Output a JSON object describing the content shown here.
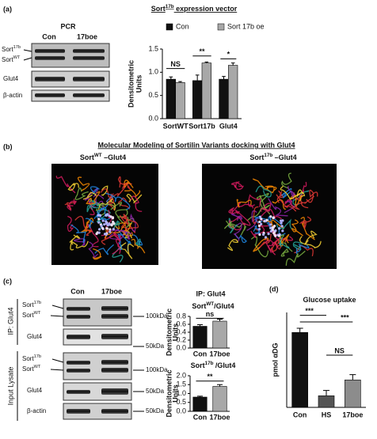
{
  "figure": {
    "a": {
      "label": "(a)",
      "title": {
        "base": "Sort",
        "sup": "17b",
        "rest": " expression vector"
      },
      "method": "PCR",
      "lanes": [
        "Con",
        "17boe"
      ],
      "bands": {
        "sort17b": {
          "base": "Sort",
          "sup": "17b"
        },
        "sortwt": {
          "base": "Sort",
          "sup": "WT"
        },
        "glut4": "Glut4",
        "actin": "β-actin"
      }
    },
    "b": {
      "label": "(b)",
      "title": "Molecular Modeling of Sortilin Variants docking with Glut4",
      "models": [
        {
          "base": "Sort",
          "sup": "WT",
          "rest": " –Glut4"
        },
        {
          "base": "Sort",
          "sup": "17b",
          "rest": " –Glut4"
        }
      ]
    },
    "c": {
      "label": "(c)",
      "lanes": [
        "Con",
        "17boe"
      ],
      "groups": [
        "IP: Glut4",
        "Input Lysate"
      ],
      "bands": {
        "sort17b": {
          "base": "Sort",
          "sup": "17b"
        },
        "sortwt": {
          "base": "Sort",
          "sup": "WT"
        },
        "glut4": "Glut4",
        "actin": "β-actin"
      },
      "markers": [
        "100kDa",
        "50kDa"
      ],
      "chart_heading": "IP: Glut4"
    },
    "d": {
      "label": "(d)"
    }
  },
  "chart_data": [
    {
      "type": "bar",
      "categories": [
        "SortWT",
        "Sort17b",
        "Glut4"
      ],
      "series": [
        {
          "name": "Con",
          "color": "#111111",
          "values": [
            0.85,
            0.82,
            0.85
          ],
          "errors": [
            0.05,
            0.12,
            0.06
          ]
        },
        {
          "name": "Sort 17b oe",
          "color": "#a8a8a8",
          "values": [
            0.78,
            1.2,
            1.15
          ],
          "errors": [
            0.02,
            0.02,
            0.05
          ]
        }
      ],
      "y_label": [
        "Densitometric",
        "Units"
      ],
      "ylim": [
        0,
        1.5
      ],
      "yticks": [
        {
          "value": 0,
          "label": "0.0"
        },
        0.5,
        {
          "value": 1,
          "label": "1.0"
        },
        1.5
      ],
      "annotations": [
        "NS",
        "**",
        "*"
      ],
      "legend": "top"
    },
    {
      "type": "bar",
      "title": {
        "base": "Sort",
        "sup": "WT",
        "rest": "/Glut4"
      },
      "categories": [
        "Con",
        "17boe"
      ],
      "values": [
        0.55,
        0.68
      ],
      "errors": [
        0.04,
        0.05
      ],
      "colors": [
        "#111111",
        "#a8a8a8"
      ],
      "y_label": [
        "Densitometric",
        "Units"
      ],
      "ylim": [
        0,
        0.8
      ],
      "yticks": [
        {
          "value": 0,
          "label": "0.0"
        },
        0.2,
        0.4,
        0.6,
        0.8
      ],
      "annotations": [
        "ns"
      ]
    },
    {
      "type": "bar",
      "title": {
        "base": "Sort",
        "sup": "17b",
        "rest": " /Glut4"
      },
      "categories": [
        "Con",
        "17boe"
      ],
      "values": [
        0.8,
        1.4
      ],
      "errors": [
        0.05,
        0.1
      ],
      "colors": [
        "#111111",
        "#a8a8a8"
      ],
      "y_label": [
        "Densitometric",
        "Units"
      ],
      "ylim": [
        0,
        2
      ],
      "yticks": [
        {
          "value": 0,
          "label": "0.0"
        },
        0.5,
        {
          "value": 1,
          "label": "1.0"
        },
        1.5,
        {
          "value": 2,
          "label": "2.0"
        }
      ],
      "annotations": [
        "**"
      ]
    },
    {
      "type": "bar",
      "title": "Glucose uptake",
      "categories": [
        "Con",
        "HS",
        "17boe"
      ],
      "values": [
        710,
        110,
        260
      ],
      "errors": [
        40,
        50,
        50
      ],
      "colors": [
        "#111111",
        "#555555",
        "#8c8c8c"
      ],
      "y_label": [
        "pmol αDG"
      ],
      "ylim": [
        0,
        900
      ],
      "annotations": [
        "***",
        "***",
        "NS"
      ]
    }
  ]
}
